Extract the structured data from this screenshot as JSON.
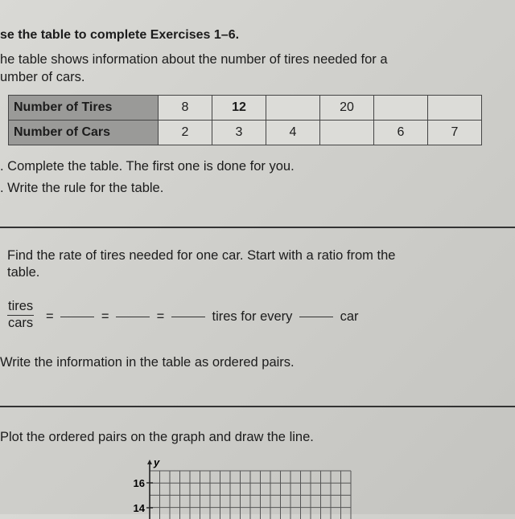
{
  "heading": "se the table to complete Exercises 1–6.",
  "intro_line1": "he table shows information about the number of tires needed for a",
  "intro_line2": "umber of cars.",
  "table": {
    "rows": [
      {
        "label": "Number of Tires",
        "cells": [
          "8",
          "12",
          "",
          "20",
          "",
          ""
        ]
      },
      {
        "label": "Number of Cars",
        "cells": [
          "2",
          "3",
          "4",
          "",
          "6",
          "7"
        ]
      }
    ]
  },
  "ex1": ". Complete the table. The first one is done for you.",
  "ex2": ". Write the rule for the table.",
  "ex3_line1": "Find the rate of tires needed for one car. Start with a ratio from the",
  "ex3_line2": "table.",
  "ratio": {
    "numerator": "tires",
    "denominator": "cars",
    "eq": "=",
    "tires_for_every": "tires for every",
    "car": "car"
  },
  "ex4": "Write the information in the table as ordered pairs.",
  "ex5": "Plot the ordered pairs on the graph and draw the line.",
  "graph": {
    "y_axis_label": "y",
    "y_ticks": [
      "16",
      "14"
    ]
  }
}
